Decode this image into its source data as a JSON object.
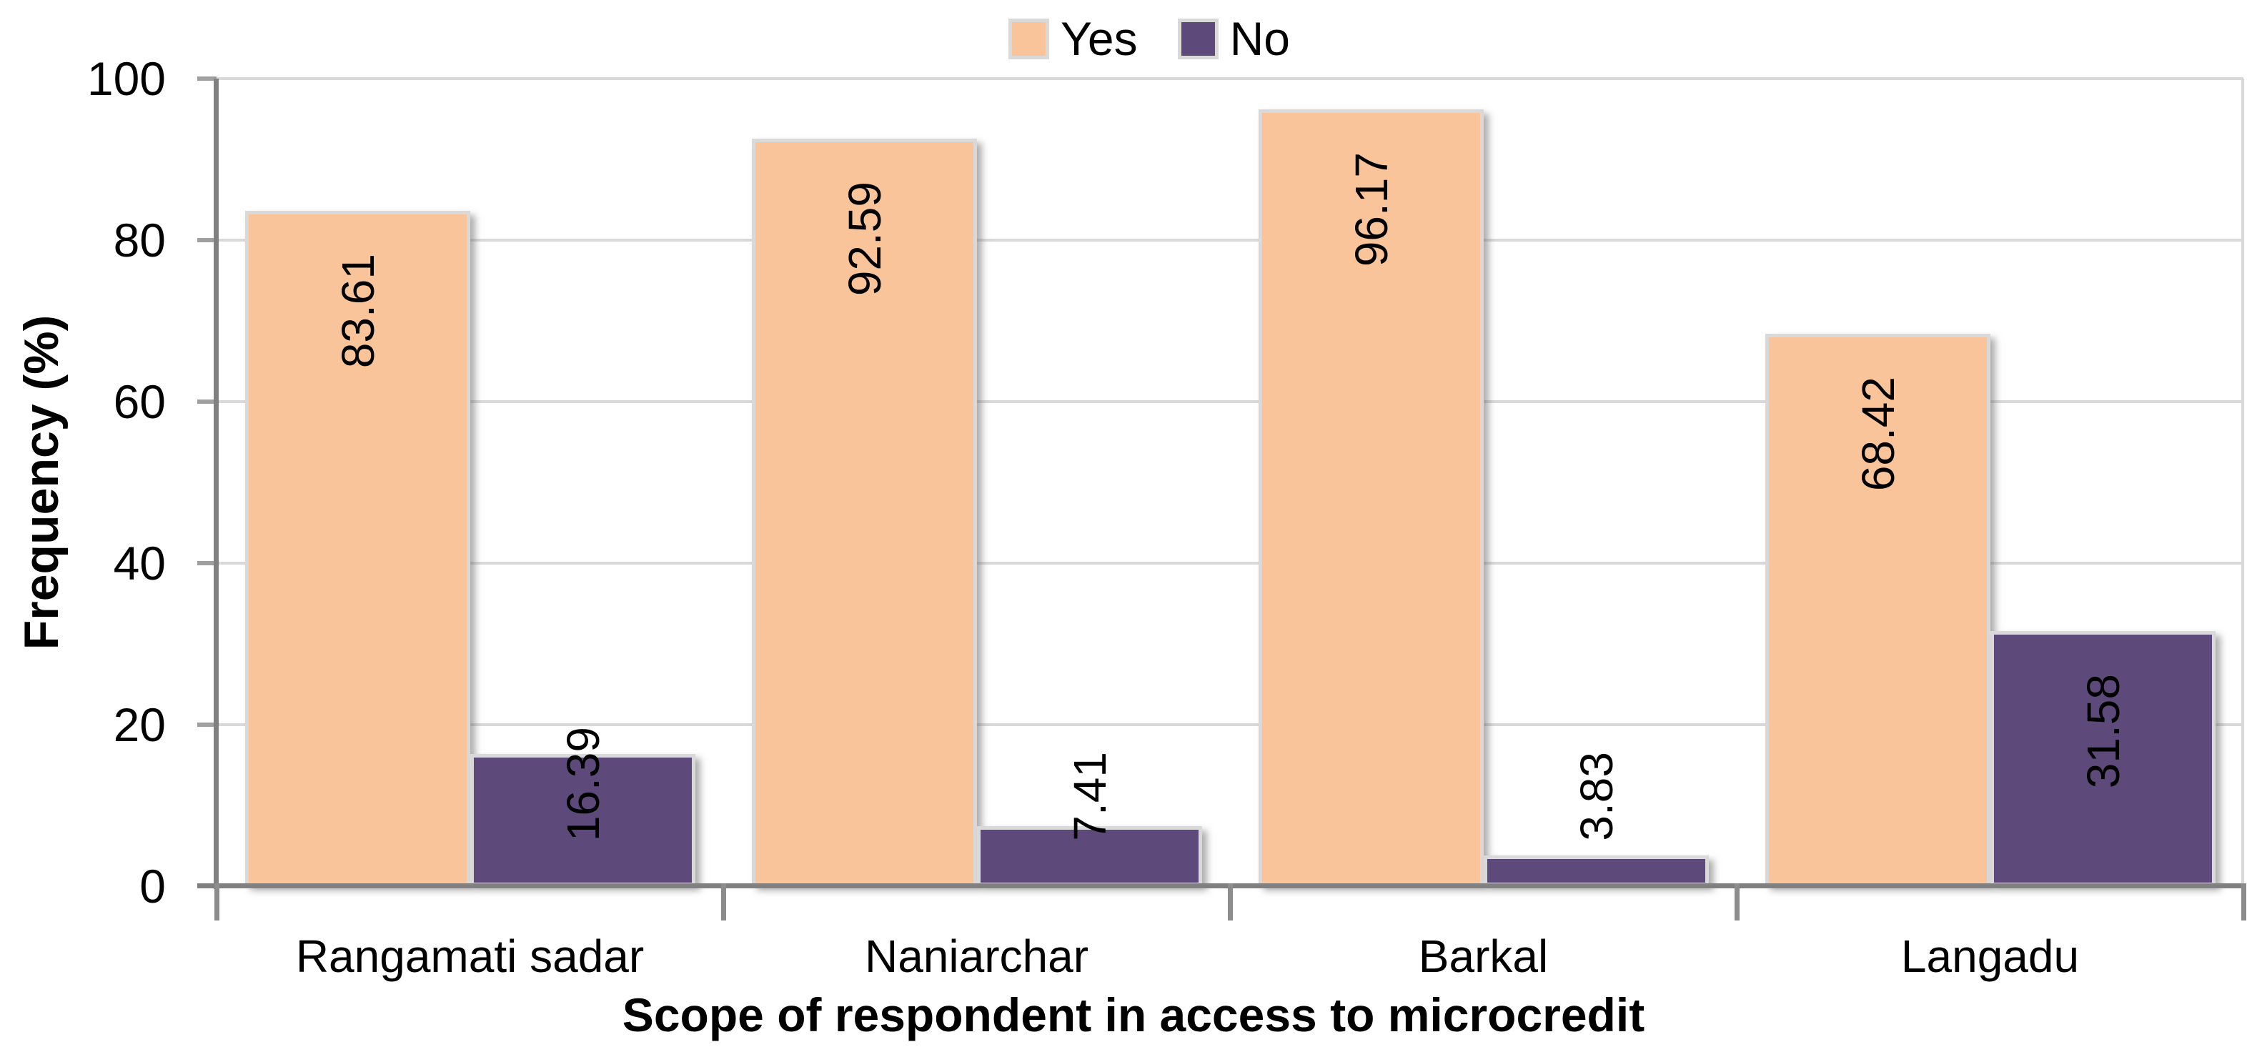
{
  "chart_data": {
    "type": "bar",
    "title": "",
    "categories": [
      "Rangamati sadar",
      "Naniarchar",
      "Barkal",
      "Langadu"
    ],
    "series": [
      {
        "name": "Yes",
        "color": "#f9c499",
        "values": [
          83.61,
          92.59,
          96.17,
          68.42
        ],
        "labels": [
          "83.61",
          "92.59",
          "96.17",
          "68.42"
        ]
      },
      {
        "name": "No",
        "color": "#5d4a7a",
        "values": [
          16.39,
          7.41,
          3.83,
          31.58
        ],
        "labels": [
          "16.39",
          "7.41",
          "3.83",
          "31.58"
        ]
      }
    ],
    "xlabel": "Scope of respondent in access to microcredit",
    "ylabel": "Frequency (%)",
    "yticks": [
      0,
      20,
      40,
      60,
      80,
      100
    ],
    "ylim": [
      0,
      100
    ],
    "grid": "horizontal",
    "legend_position": "top",
    "data_label_rotation": "vertical-bottom-to-top",
    "colors": {
      "gridline": "#d9d9d9",
      "axis": "#808080",
      "tick": "#a0a0a0",
      "bar_border": "#d9d9d9",
      "label_text": "#000000",
      "background": "#ffffff"
    }
  }
}
